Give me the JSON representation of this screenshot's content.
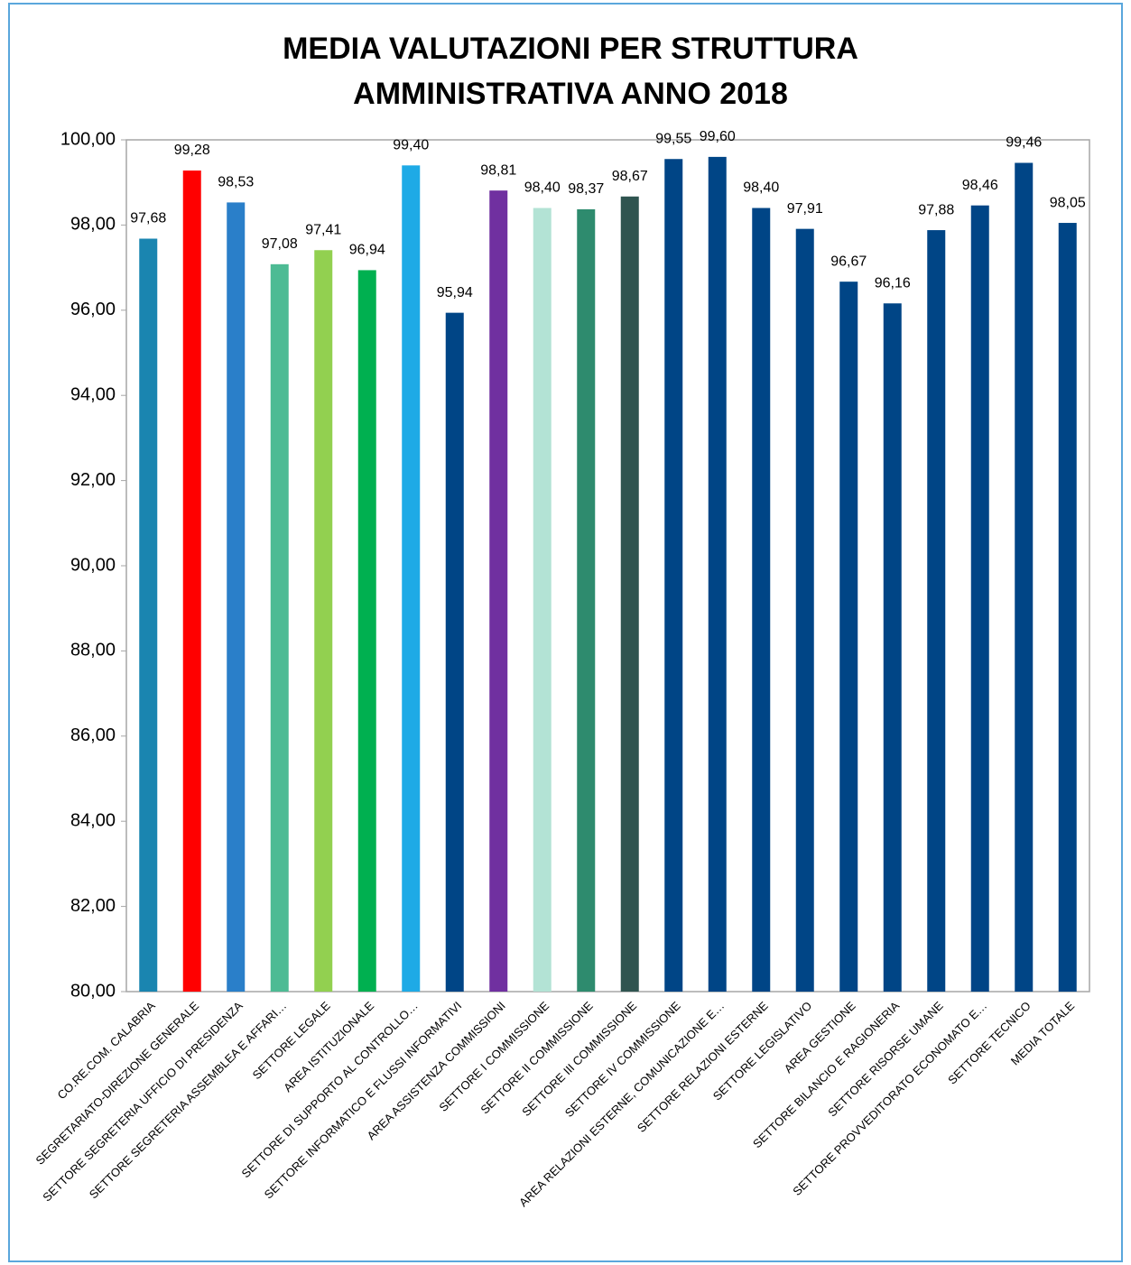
{
  "chart_data": {
    "type": "bar",
    "title": [
      "MEDIA VALUTAZIONI PER STRUTTURA",
      "AMMINISTRATIVA ANNO 2018"
    ],
    "categories": [
      "CO.RE.COM. CALABRIA",
      "SEGRETARIATO-DIREZIONE GENERALE",
      "SETTORE SEGRETERIA UFFICIO DI PRESIDENZA",
      "SETTORE SEGRETERIA ASSEMBLEA E AFFARI…",
      "SETTORE LEGALE",
      "AREA ISTITUZIONALE",
      "SETTORE DI SUPPORTO AL CONTROLLO…",
      "SETTORE INFORMATICO E FLUSSI INFORMATIVI",
      "AREA ASSISTENZA COMMISSIONI",
      "SETTORE I COMMISSIONE",
      "SETTORE II COMMISSIONE",
      "SETTORE III COMMISSIONE",
      "SETTORE IV COMMISSIONE",
      "AREA RELAZIONI ESTERNE, COMUNICAZIONE E…",
      "SETTORE RELAZIONI ESTERNE",
      "SETTORE LEGISLATIVO",
      "AREA GESTIONE",
      "SETTORE BILANCIO E RAGIONERIA",
      "SETTORE RISORSE UMANE",
      "SETTORE PROVVEDITORATO ECONOMATO E…",
      "SETTORE TECNICO",
      "MEDIA TOTALE"
    ],
    "values": [
      97.68,
      99.28,
      98.53,
      97.08,
      97.41,
      96.94,
      99.4,
      95.94,
      98.81,
      98.4,
      98.37,
      98.67,
      99.55,
      99.6,
      98.4,
      97.91,
      96.67,
      96.16,
      97.88,
      98.46,
      99.46,
      98.05
    ],
    "value_labels": [
      "97,68",
      "99,28",
      "98,53",
      "97,08",
      "97,41",
      "96,94",
      "99,40",
      "95,94",
      "98,81",
      "98,40",
      "98,37",
      "98,67",
      "99,55",
      "99,60",
      "98,40",
      "97,91",
      "96,67",
      "96,16",
      "97,88",
      "98,46",
      "99,46",
      "98,05"
    ],
    "colors": [
      "#1a85b0",
      "#ff0000",
      "#2a7fc9",
      "#4dbb94",
      "#92d050",
      "#00b050",
      "#1eaae6",
      "#004586",
      "#7030a0",
      "#b3e3d5",
      "#2e8b6e",
      "#2f5450",
      "#004586",
      "#004586",
      "#004586",
      "#004586",
      "#004586",
      "#004586",
      "#004586",
      "#004586",
      "#004586",
      "#004586"
    ],
    "ylim": [
      80,
      100
    ],
    "yticks": [
      {
        "value": 80,
        "label": "80,00"
      },
      {
        "value": 82,
        "label": "82,00"
      },
      {
        "value": 84,
        "label": "84,00"
      },
      {
        "value": 86,
        "label": "86,00"
      },
      {
        "value": 88,
        "label": "88,00"
      },
      {
        "value": 90,
        "label": "90,00"
      },
      {
        "value": 92,
        "label": "92,00"
      },
      {
        "value": 94,
        "label": "94,00"
      },
      {
        "value": 96,
        "label": "96,00"
      },
      {
        "value": 98,
        "label": "98,00"
      },
      {
        "value": 100,
        "label": "100,00"
      }
    ],
    "grid": false
  }
}
